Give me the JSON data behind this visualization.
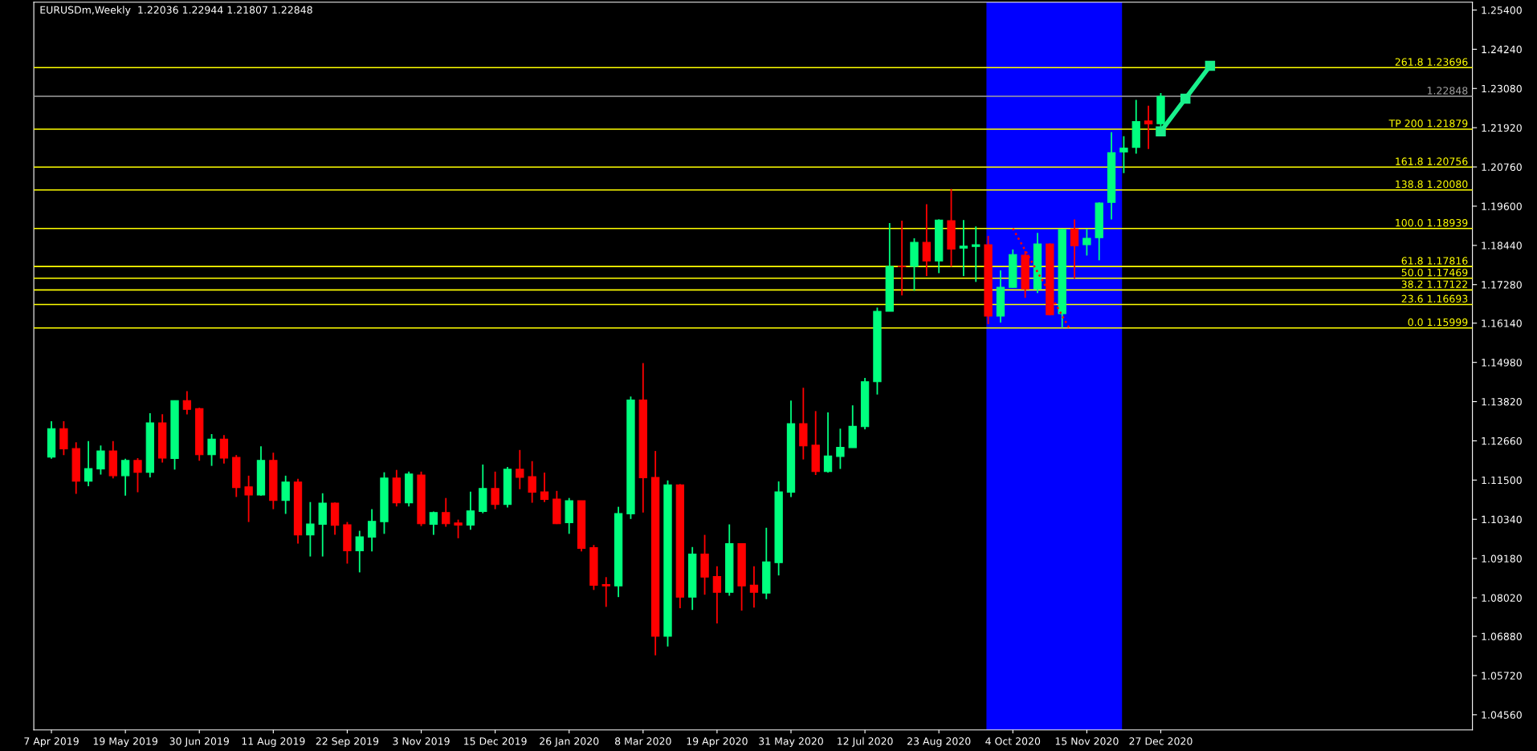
{
  "chart_data": {
    "type": "candlestick",
    "title": "EURUSDm,Weekly  1.22036 1.22944 1.21807 1.22848",
    "colors": [
      "#00ff7f",
      "#ff0000"
    ],
    "series": [
      {
        "x": [
          "2019-04-07",
          "2019-04-14",
          "2019-04-21",
          "2019-04-28",
          "2019-05-05",
          "2019-05-12",
          "2019-05-19",
          "2019-05-26",
          "2019-06-02",
          "2019-06-09",
          "2019-06-16",
          "2019-06-23",
          "2019-06-30",
          "2019-07-07",
          "2019-07-14",
          "2019-07-21",
          "2019-07-28",
          "2019-08-04",
          "2019-08-11",
          "2019-08-18",
          "2019-08-25",
          "2019-09-01",
          "2019-09-08",
          "2019-09-15",
          "2019-09-22",
          "2019-09-29",
          "2019-10-06",
          "2019-10-13",
          "2019-10-20",
          "2019-10-27",
          "2019-11-03",
          "2019-11-10",
          "2019-11-17",
          "2019-11-24",
          "2019-12-01",
          "2019-12-08",
          "2019-12-15",
          "2019-12-22",
          "2019-12-29",
          "2020-01-05",
          "2020-01-12",
          "2020-01-19",
          "2020-01-26",
          "2020-02-02",
          "2020-02-09",
          "2020-02-16",
          "2020-02-23",
          "2020-03-01",
          "2020-03-08",
          "2020-03-15",
          "2020-03-22",
          "2020-03-29",
          "2020-04-05",
          "2020-04-12",
          "2020-04-19",
          "2020-04-26",
          "2020-05-03",
          "2020-05-10",
          "2020-05-17",
          "2020-05-24",
          "2020-05-31",
          "2020-06-07",
          "2020-06-14",
          "2020-06-21",
          "2020-06-28",
          "2020-07-05",
          "2020-07-12",
          "2020-07-19",
          "2020-07-26",
          "2020-08-02",
          "2020-08-09",
          "2020-08-16",
          "2020-08-23",
          "2020-08-30",
          "2020-09-06",
          "2020-09-13",
          "2020-09-20",
          "2020-09-27",
          "2020-10-04",
          "2020-10-11",
          "2020-10-18",
          "2020-10-25",
          "2020-11-01",
          "2020-11-08",
          "2020-11-15",
          "2020-11-22",
          "2020-11-29",
          "2020-12-06",
          "2020-12-13",
          "2020-12-20",
          "2020-12-27"
        ],
        "ohlc": [
          [
            1.1218,
            1.1324,
            1.1213,
            1.1302
          ],
          [
            1.1302,
            1.1324,
            1.1224,
            1.1242
          ],
          [
            1.1243,
            1.1262,
            1.1109,
            1.1147
          ],
          [
            1.1147,
            1.1265,
            1.1132,
            1.1184
          ],
          [
            1.1183,
            1.1252,
            1.1166,
            1.1236
          ],
          [
            1.1236,
            1.1265,
            1.1155,
            1.1163
          ],
          [
            1.1163,
            1.1213,
            1.1104,
            1.1208
          ],
          [
            1.1208,
            1.1215,
            1.1114,
            1.1173
          ],
          [
            1.1173,
            1.1348,
            1.1158,
            1.1319
          ],
          [
            1.1319,
            1.1345,
            1.1202,
            1.1215
          ],
          [
            1.1214,
            1.1385,
            1.1181,
            1.1385
          ],
          [
            1.1385,
            1.1413,
            1.1344,
            1.1359
          ],
          [
            1.1361,
            1.1364,
            1.1207,
            1.1225
          ],
          [
            1.1225,
            1.1286,
            1.1192,
            1.1271
          ],
          [
            1.1271,
            1.1283,
            1.1199,
            1.1215
          ],
          [
            1.1217,
            1.1224,
            1.11,
            1.1128
          ],
          [
            1.113,
            1.1163,
            1.1026,
            1.1106
          ],
          [
            1.1106,
            1.125,
            1.1104,
            1.1208
          ],
          [
            1.1208,
            1.1231,
            1.1064,
            1.109
          ],
          [
            1.109,
            1.1163,
            1.105,
            1.1144
          ],
          [
            1.1144,
            1.1154,
            1.0962,
            1.0988
          ],
          [
            1.0988,
            1.1085,
            1.0924,
            1.102
          ],
          [
            1.1019,
            1.1111,
            1.0924,
            1.1082
          ],
          [
            1.1082,
            1.1084,
            1.0988,
            1.1016
          ],
          [
            1.1018,
            1.1026,
            1.0903,
            1.0941
          ],
          [
            1.0941,
            1.1,
            1.0877,
            1.0982
          ],
          [
            1.0981,
            1.1064,
            1.0939,
            1.1028
          ],
          [
            1.1027,
            1.1173,
            1.0991,
            1.1156
          ],
          [
            1.1156,
            1.118,
            1.1072,
            1.1083
          ],
          [
            1.1083,
            1.1175,
            1.1072,
            1.1168
          ],
          [
            1.1165,
            1.1175,
            1.1014,
            1.1021
          ],
          [
            1.1019,
            1.1057,
            1.0988,
            1.1054
          ],
          [
            1.1054,
            1.1097,
            1.1012,
            1.1021
          ],
          [
            1.1023,
            1.1033,
            1.0978,
            1.1017
          ],
          [
            1.1017,
            1.1116,
            1.1003,
            1.1059
          ],
          [
            1.1057,
            1.1196,
            1.1052,
            1.1125
          ],
          [
            1.1125,
            1.1175,
            1.1064,
            1.1078
          ],
          [
            1.1078,
            1.1189,
            1.1069,
            1.1182
          ],
          [
            1.1182,
            1.1239,
            1.1123,
            1.1158
          ],
          [
            1.116,
            1.1206,
            1.1083,
            1.1114
          ],
          [
            1.1115,
            1.1172,
            1.1085,
            1.1093
          ],
          [
            1.1094,
            1.1118,
            1.102,
            1.1021
          ],
          [
            1.1024,
            1.1097,
            1.0991,
            1.1089
          ],
          [
            1.1089,
            1.1089,
            1.0939,
            1.0948
          ],
          [
            1.095,
            1.0958,
            1.0825,
            1.0839
          ],
          [
            1.0841,
            1.0863,
            1.0775,
            1.0837
          ],
          [
            1.0837,
            1.1071,
            1.0804,
            1.1051
          ],
          [
            1.105,
            1.1397,
            1.1035,
            1.1387
          ],
          [
            1.1387,
            1.1496,
            1.1054,
            1.1157
          ],
          [
            1.1158,
            1.1236,
            1.0632,
            1.0688
          ],
          [
            1.0688,
            1.1149,
            1.0658,
            1.1136
          ],
          [
            1.1136,
            1.1138,
            1.0771,
            1.0804
          ],
          [
            1.0804,
            1.0952,
            1.0766,
            1.0931
          ],
          [
            1.0931,
            1.0988,
            1.0811,
            1.0863
          ],
          [
            1.0865,
            1.0895,
            1.0726,
            1.0818
          ],
          [
            1.0818,
            1.1019,
            1.0808,
            1.0962
          ],
          [
            1.0962,
            1.0962,
            1.0764,
            1.0837
          ],
          [
            1.0839,
            1.0895,
            1.0773,
            1.0818
          ],
          [
            1.0816,
            1.1009,
            1.0798,
            1.0908
          ],
          [
            1.0906,
            1.1146,
            1.0868,
            1.1115
          ],
          [
            1.1114,
            1.1385,
            1.11,
            1.1317
          ],
          [
            1.1317,
            1.1423,
            1.1211,
            1.1251
          ],
          [
            1.1253,
            1.1354,
            1.1165,
            1.1175
          ],
          [
            1.1175,
            1.135,
            1.1172,
            1.1221
          ],
          [
            1.122,
            1.1302,
            1.1183,
            1.1247
          ],
          [
            1.1246,
            1.1371,
            1.1246,
            1.1309
          ],
          [
            1.1308,
            1.1452,
            1.13,
            1.1441
          ],
          [
            1.1441,
            1.166,
            1.1403,
            1.1649
          ],
          [
            1.1649,
            1.191,
            1.1649,
            1.1782
          ],
          [
            1.1782,
            1.1917,
            1.1696,
            1.1781
          ],
          [
            1.1782,
            1.1865,
            1.171,
            1.1853
          ],
          [
            1.1853,
            1.1966,
            1.1753,
            1.1798
          ],
          [
            1.1798,
            1.1921,
            1.1762,
            1.1919
          ],
          [
            1.1917,
            1.2011,
            1.1781,
            1.1833
          ],
          [
            1.1836,
            1.1919,
            1.1753,
            1.1842
          ],
          [
            1.1841,
            1.19,
            1.1736,
            1.1846
          ],
          [
            1.1846,
            1.1872,
            1.1611,
            1.1635
          ],
          [
            1.1635,
            1.177,
            1.1616,
            1.172
          ],
          [
            1.172,
            1.1832,
            1.1719,
            1.1817
          ],
          [
            1.1815,
            1.1827,
            1.1689,
            1.1715
          ],
          [
            1.1715,
            1.1881,
            1.1703,
            1.1848
          ],
          [
            1.1848,
            1.185,
            1.1637,
            1.1639
          ],
          [
            1.1642,
            1.1893,
            1.16,
            1.1891
          ],
          [
            1.1893,
            1.1921,
            1.1746,
            1.1843
          ],
          [
            1.1846,
            1.1893,
            1.1814,
            1.1865
          ],
          [
            1.1867,
            1.1971,
            1.18,
            1.1969
          ],
          [
            1.1971,
            1.2179,
            1.1921,
            1.2118
          ],
          [
            1.212,
            1.2167,
            1.2058,
            1.2132
          ],
          [
            1.2134,
            1.2274,
            1.2115,
            1.221
          ],
          [
            1.2212,
            1.2257,
            1.2129,
            1.2203
          ],
          [
            1.22036,
            1.22944,
            1.21807,
            1.22848
          ]
        ]
      },
      {
        "type": "line",
        "color": "#ff0000",
        "line_style": "dotted",
        "marker": "none",
        "x": [
          "2020-10-04",
          "2020-11-05"
        ],
        "values": [
          1.18939,
          1.15999
        ]
      },
      {
        "type": "line",
        "color": "#19f08c",
        "line_style": "solid",
        "marker": "square",
        "x": [
          "2020-12-27",
          "2021-01-10",
          "2021-01-24"
        ],
        "values": [
          1.2181,
          1.2278,
          1.2375
        ]
      }
    ],
    "xlim": [
      "2019-03-28",
      "2021-06-22"
    ],
    "xticks": [
      {
        "value": "2019-04-07",
        "label": "7 Apr 2019"
      },
      {
        "value": "2019-05-19",
        "label": "19 May 2019"
      },
      {
        "value": "2019-06-30",
        "label": "30 Jun 2019"
      },
      {
        "value": "2019-08-11",
        "label": "11 Aug 2019"
      },
      {
        "value": "2019-09-22",
        "label": "22 Sep 2019"
      },
      {
        "value": "2019-11-03",
        "label": "3 Nov 2019"
      },
      {
        "value": "2019-12-15",
        "label": "15 Dec 2019"
      },
      {
        "value": "2020-01-26",
        "label": "26 Jan 2020"
      },
      {
        "value": "2020-03-08",
        "label": "8 Mar 2020"
      },
      {
        "value": "2020-04-19",
        "label": "19 Apr 2020"
      },
      {
        "value": "2020-05-31",
        "label": "31 May 2020"
      },
      {
        "value": "2020-07-12",
        "label": "12 Jul 2020"
      },
      {
        "value": "2020-08-23",
        "label": "23 Aug 2020"
      },
      {
        "value": "2020-10-04",
        "label": "4 Oct 2020"
      },
      {
        "value": "2020-11-15",
        "label": "15 Nov 2020"
      },
      {
        "value": "2020-12-27",
        "label": "27 Dec 2020"
      }
    ],
    "ylim": [
      1.0411,
      1.2563
    ],
    "yticks": [
      {
        "value": 1.0456,
        "label": "1.04560"
      },
      {
        "value": 1.0572,
        "label": "1.05720"
      },
      {
        "value": 1.0688,
        "label": "1.06880"
      },
      {
        "value": 1.0802,
        "label": "1.08020"
      },
      {
        "value": 1.0918,
        "label": "1.09180"
      },
      {
        "value": 1.1034,
        "label": "1.10340"
      },
      {
        "value": 1.115,
        "label": "1.11500"
      },
      {
        "value": 1.1266,
        "label": "1.12660"
      },
      {
        "value": 1.1382,
        "label": "1.13820"
      },
      {
        "value": 1.1498,
        "label": "1.14980"
      },
      {
        "value": 1.1614,
        "label": "1.16140"
      },
      {
        "value": 1.1728,
        "label": "1.17280"
      },
      {
        "value": 1.1844,
        "label": "1.18440"
      },
      {
        "value": 1.196,
        "label": "1.19600"
      },
      {
        "value": 1.2076,
        "label": "1.20760"
      },
      {
        "value": 1.2192,
        "label": "1.21920"
      },
      {
        "value": 1.2308,
        "label": "1.23080"
      },
      {
        "value": 1.2424,
        "label": "1.24240"
      },
      {
        "value": 1.254,
        "label": "1.25400"
      }
    ],
    "ref_lines": [
      {
        "axis": "y",
        "value": 1.22848,
        "label": "1.22848",
        "color": "#a0a0a0"
      },
      {
        "axis": "y",
        "value": 1.23696,
        "label": "261.8 1.23696",
        "color": "#ffff00"
      },
      {
        "axis": "y",
        "value": 1.21879,
        "label": "TP 200 1.21879",
        "color": "#ffff00"
      },
      {
        "axis": "y",
        "value": 1.20756,
        "label": "161.8 1.20756",
        "color": "#ffff00"
      },
      {
        "axis": "y",
        "value": 1.2008,
        "label": "138.8 1.20080",
        "color": "#ffff00"
      },
      {
        "axis": "y",
        "value": 1.18939,
        "label": "100.0 1.18939",
        "color": "#ffff00"
      },
      {
        "axis": "y",
        "value": 1.17816,
        "label": "61.8 1.17816",
        "color": "#ffff00"
      },
      {
        "axis": "y",
        "value": 1.17469,
        "label": "50.0 1.17469",
        "color": "#ffff00"
      },
      {
        "axis": "y",
        "value": 1.17122,
        "label": "38.2 1.17122",
        "color": "#ffff00"
      },
      {
        "axis": "y",
        "value": 1.16693,
        "label": "23.6 1.16693",
        "color": "#ffff00"
      },
      {
        "axis": "y",
        "value": 1.15999,
        "label": "0.0 1.15999",
        "color": "#ffff00"
      }
    ],
    "bands": [
      {
        "axis": "x",
        "from": "2020-09-19",
        "to": "2020-12-05",
        "color": "#0000ff"
      }
    ],
    "grid": false,
    "legend": false
  }
}
